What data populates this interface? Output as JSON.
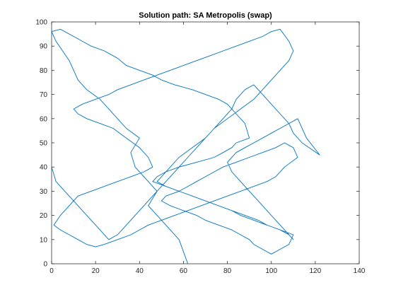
{
  "chart_data": {
    "type": "line",
    "title": "Solution path: SA Metropolis (swap)",
    "xlabel": "",
    "ylabel": "",
    "xlim": [
      0,
      140
    ],
    "ylim": [
      0,
      100
    ],
    "x_ticks": [
      0,
      20,
      40,
      60,
      80,
      100,
      120,
      140
    ],
    "y_ticks": [
      0,
      10,
      20,
      30,
      40,
      50,
      60,
      70,
      80,
      90,
      100
    ],
    "grid": false,
    "legend": "none",
    "colors": {
      "line": "#0072bd",
      "axis": "#262626",
      "background": "#ffffff"
    },
    "series": [
      {
        "x": [
          62,
          58,
          50,
          44,
          48,
          42,
          38,
          36,
          40,
          34,
          30,
          26,
          22,
          16,
          12,
          10,
          8,
          5,
          2,
          0,
          4,
          10,
          18,
          24,
          30,
          34,
          40,
          46,
          50,
          56,
          64,
          70,
          76,
          80,
          84,
          88,
          90,
          84,
          82,
          78,
          74,
          66,
          58,
          52,
          48,
          46,
          52,
          58,
          64,
          70,
          76,
          82,
          88,
          94,
          98,
          104,
          110,
          108,
          104,
          100,
          96,
          92,
          90,
          86,
          82,
          76,
          70,
          66,
          60,
          54,
          50,
          52,
          58,
          62,
          66,
          70,
          74,
          78,
          84,
          90,
          96,
          102,
          106,
          110,
          112,
          106,
          102,
          98,
          92,
          86,
          80,
          74,
          68,
          62,
          56,
          50,
          44,
          40,
          36,
          30,
          24,
          20,
          16,
          12,
          8,
          4,
          1,
          4,
          8,
          12,
          18,
          24,
          30,
          36,
          42,
          46,
          44,
          40,
          34,
          28,
          22,
          16,
          12,
          10,
          14,
          20,
          26,
          30,
          36,
          42,
          48,
          54,
          60,
          66,
          72,
          78,
          84,
          90,
          96,
          100,
          104,
          108,
          110,
          108,
          104,
          100,
          96,
          92,
          86,
          80,
          74,
          70,
          64,
          58,
          54,
          50,
          48,
          52,
          58,
          64,
          70,
          76,
          82,
          86,
          92,
          98,
          104,
          108,
          110,
          106,
          102,
          98,
          94,
          90,
          86,
          82,
          80,
          84,
          88,
          92,
          96,
          100,
          104,
          108,
          112,
          116,
          122,
          114,
          110,
          108,
          104,
          100,
          96,
          92,
          88,
          84,
          82,
          78,
          74,
          70,
          66,
          62,
          58,
          54,
          50,
          46,
          42,
          38,
          34,
          30,
          26,
          22,
          18,
          14,
          10,
          6,
          2,
          0
        ],
        "y": [
          0,
          10,
          18,
          24,
          30,
          36,
          40,
          46,
          52,
          56,
          60,
          64,
          68,
          72,
          76,
          80,
          84,
          88,
          92,
          96,
          97,
          94,
          90,
          88,
          85,
          82,
          80,
          78,
          76,
          74,
          72,
          70,
          68,
          66,
          62,
          58,
          52,
          50,
          48,
          46,
          44,
          42,
          40,
          38,
          36,
          34,
          32,
          30,
          28,
          26,
          24,
          22,
          20,
          18,
          16,
          14,
          12,
          8,
          6,
          4,
          6,
          8,
          10,
          12,
          14,
          16,
          18,
          20,
          22,
          24,
          26,
          28,
          30,
          32,
          34,
          36,
          38,
          40,
          42,
          44,
          46,
          48,
          50,
          48,
          44,
          40,
          36,
          34,
          32,
          30,
          28,
          26,
          24,
          22,
          20,
          18,
          16,
          14,
          12,
          10,
          8,
          7,
          8,
          10,
          12,
          14,
          16,
          20,
          24,
          28,
          30,
          32,
          34,
          36,
          38,
          40,
          44,
          48,
          52,
          56,
          58,
          60,
          62,
          64,
          66,
          68,
          70,
          72,
          74,
          76,
          78,
          80,
          82,
          84,
          86,
          88,
          90,
          92,
          94,
          96,
          97,
          92,
          88,
          84,
          80,
          76,
          72,
          68,
          64,
          60,
          56,
          52,
          48,
          44,
          40,
          36,
          34,
          32,
          30,
          28,
          26,
          24,
          22,
          20,
          18,
          16,
          14,
          12,
          10,
          14,
          18,
          22,
          26,
          30,
          34,
          38,
          42,
          46,
          48,
          50,
          52,
          54,
          56,
          58,
          60,
          52,
          45,
          50,
          54,
          58,
          62,
          66,
          70,
          74,
          72,
          68,
          64,
          60,
          56,
          52,
          48,
          44,
          40,
          36,
          32,
          28,
          24,
          20,
          16,
          12,
          10,
          14,
          18,
          22,
          26,
          30,
          34,
          40
        ]
      }
    ]
  }
}
